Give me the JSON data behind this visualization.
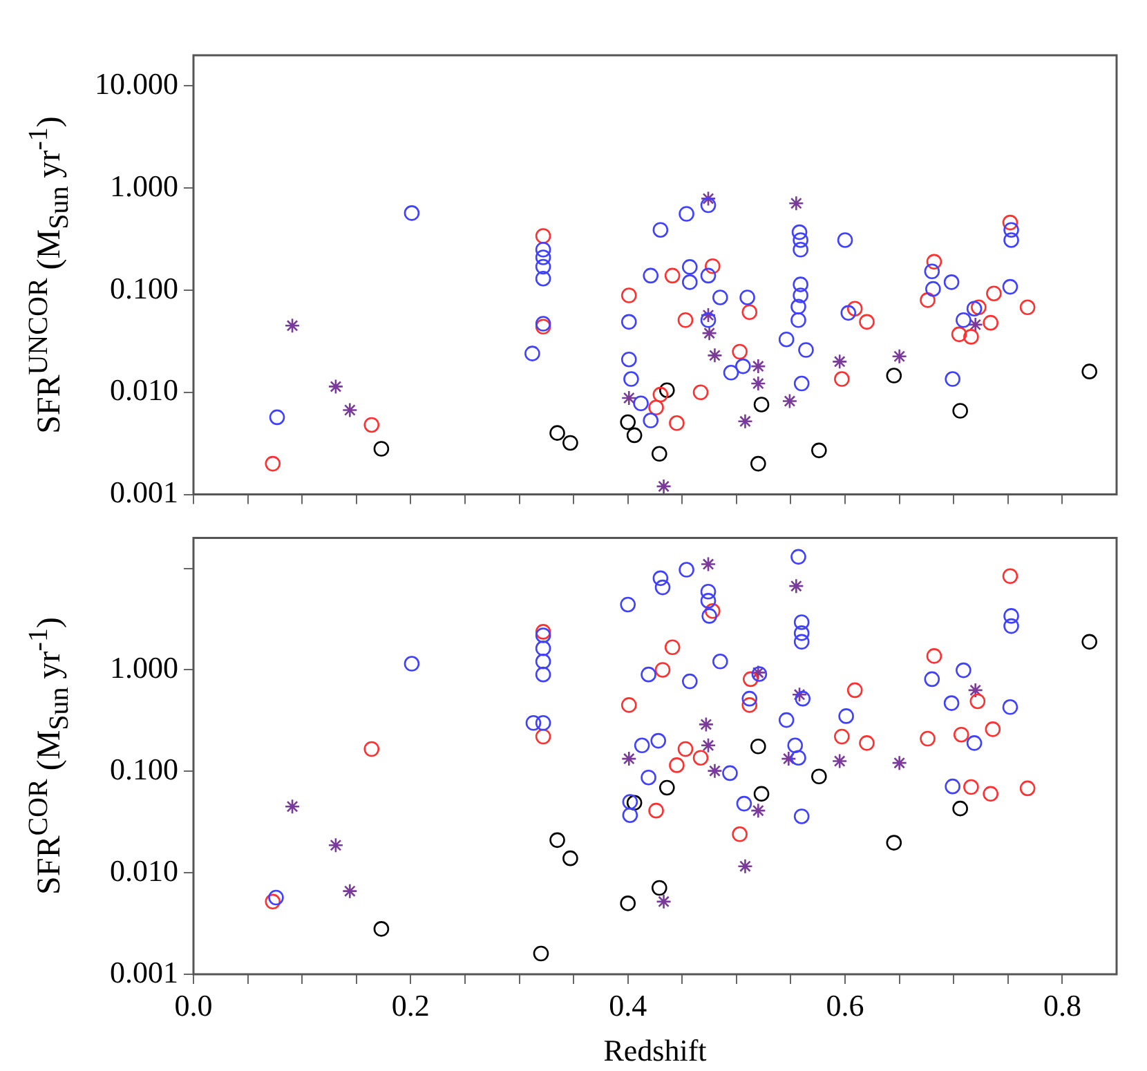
{
  "chart_data": [
    {
      "type": "scatter",
      "ylabel": "SFR$^{UNCOR}$ (M$_{Sun}$ yr$^{-1}$)",
      "log": "y",
      "grid": false,
      "tick_labels": "y",
      "xlim": [
        0,
        0.85
      ],
      "xticks": [
        {
          "value": 0,
          "label": null
        },
        {
          "value": 0.05,
          "label": null
        },
        {
          "value": 0.1,
          "label": null
        },
        {
          "value": 0.15,
          "label": null
        },
        {
          "value": 0.2,
          "label": null
        },
        {
          "value": 0.25,
          "label": null
        },
        {
          "value": 0.3,
          "label": null
        },
        {
          "value": 0.35,
          "label": null
        },
        {
          "value": 0.4,
          "label": null
        },
        {
          "value": 0.45,
          "label": null
        },
        {
          "value": 0.5,
          "label": null
        },
        {
          "value": 0.55,
          "label": null
        },
        {
          "value": 0.6,
          "label": null
        },
        {
          "value": 0.65,
          "label": null
        },
        {
          "value": 0.7,
          "label": null
        },
        {
          "value": 0.75,
          "label": null
        },
        {
          "value": 0.8,
          "label": null
        }
      ],
      "ylim": [
        0.001,
        20
      ],
      "yticks": [
        0.001,
        {
          "value": 0.01,
          "label": "0.010"
        },
        {
          "value": 0.1,
          "label": "0.100"
        },
        {
          "value": 1,
          "label": "1.000"
        },
        {
          "value": 10,
          "label": "10.000"
        }
      ],
      "series": [
        {
          "color": "#4040ff",
          "marker": "circle",
          "x": [
            0.201,
            0.077,
            0.322,
            0.322,
            0.322,
            0.322,
            0.322,
            0.312,
            0.401,
            0.401,
            0.403,
            0.412,
            0.421,
            0.421,
            0.43,
            0.454,
            0.474,
            0.457,
            0.457,
            0.474,
            0.485,
            0.51,
            0.474,
            0.495,
            0.506,
            0.558,
            0.559,
            0.559,
            0.559,
            0.559,
            0.557,
            0.557,
            0.546,
            0.564,
            0.56,
            0.6,
            0.603,
            0.68,
            0.681,
            0.698,
            0.709,
            0.719,
            0.699,
            0.752,
            0.753,
            0.753
          ],
          "values": [
            0.57,
            0.0057,
            0.25,
            0.21,
            0.17,
            0.13,
            0.047,
            0.024,
            0.049,
            0.021,
            0.0135,
            0.0078,
            0.0053,
            0.139,
            0.39,
            0.56,
            0.68,
            0.169,
            0.12,
            0.139,
            0.085,
            0.085,
            0.051,
            0.0156,
            0.018,
            0.37,
            0.31,
            0.25,
            0.114,
            0.089,
            0.069,
            0.051,
            0.033,
            0.026,
            0.0122,
            0.31,
            0.06,
            0.153,
            0.103,
            0.12,
            0.051,
            0.066,
            0.0135,
            0.108,
            0.39,
            0.31
          ]
        },
        {
          "color": "#ff3030",
          "marker": "circle",
          "x": [
            0.073,
            0.164,
            0.322,
            0.322,
            0.401,
            0.43,
            0.426,
            0.445,
            0.441,
            0.478,
            0.453,
            0.512,
            0.503,
            0.467,
            0.597,
            0.609,
            0.62,
            0.682,
            0.676,
            0.705,
            0.716,
            0.723,
            0.734,
            0.737,
            0.752,
            0.768
          ],
          "values": [
            0.002,
            0.0048,
            0.34,
            0.044,
            0.089,
            0.0095,
            0.0071,
            0.005,
            0.139,
            0.172,
            0.051,
            0.061,
            0.025,
            0.01,
            0.0135,
            0.066,
            0.049,
            0.19,
            0.08,
            0.037,
            0.035,
            0.068,
            0.048,
            0.093,
            0.46,
            0.068
          ]
        },
        {
          "color": "#7a3a9a",
          "marker": "cross",
          "x": [
            0.091,
            0.131,
            0.144,
            0.401,
            0.433,
            0.474,
            0.555,
            0.474,
            0.475,
            0.48,
            0.52,
            0.52,
            0.508,
            0.549,
            0.595,
            0.65,
            0.72
          ],
          "values": [
            0.045,
            0.0114,
            0.0067,
            0.0088,
            0.0012,
            0.79,
            0.71,
            0.057,
            0.038,
            0.023,
            0.018,
            0.0122,
            0.0052,
            0.0082,
            0.02,
            0.0225,
            0.046
          ]
        },
        {
          "color": "#000000",
          "marker": "circle",
          "x": [
            0.173,
            0.335,
            0.347,
            0.4,
            0.406,
            0.429,
            0.436,
            0.523,
            0.52,
            0.576,
            0.645,
            0.706,
            0.825
          ],
          "values": [
            0.0028,
            0.004,
            0.0032,
            0.0051,
            0.0038,
            0.0025,
            0.0105,
            0.0076,
            0.002,
            0.0027,
            0.0146,
            0.0066,
            0.016
          ]
        }
      ]
    },
    {
      "type": "scatter",
      "xlabel": "Redshift",
      "ylabel": "SFR$^{COR}$ (M$_{Sun}$ yr$^{-1}$)",
      "log": "y",
      "grid": false,
      "xlim": [
        0,
        0.85
      ],
      "xticks": [
        {
          "value": 0,
          "label": "0.0"
        },
        {
          "value": 0.05,
          "label": null
        },
        {
          "value": 0.1,
          "label": null
        },
        {
          "value": 0.15,
          "label": null
        },
        {
          "value": 0.2,
          "label": "0.2"
        },
        {
          "value": 0.25,
          "label": null
        },
        {
          "value": 0.3,
          "label": null
        },
        {
          "value": 0.35,
          "label": null
        },
        {
          "value": 0.4,
          "label": "0.4"
        },
        {
          "value": 0.45,
          "label": null
        },
        {
          "value": 0.5,
          "label": null
        },
        {
          "value": 0.55,
          "label": null
        },
        {
          "value": 0.6,
          "label": "0.6"
        },
        {
          "value": 0.65,
          "label": null
        },
        {
          "value": 0.7,
          "label": null
        },
        {
          "value": 0.75,
          "label": null
        },
        {
          "value": 0.8,
          "label": "0.8"
        }
      ],
      "ylim": [
        0.001,
        20
      ],
      "yticks": [
        0.001,
        {
          "value": 0.01,
          "label": "0.010"
        },
        {
          "value": 0.1,
          "label": "0.100"
        },
        {
          "value": 1,
          "label": "1.000"
        },
        {
          "value": 10,
          "label": null
        }
      ],
      "series": [
        {
          "color": "#4040ff",
          "marker": "circle",
          "x": [
            0.076,
            0.201,
            0.322,
            0.322,
            0.322,
            0.322,
            0.313,
            0.322,
            0.4,
            0.43,
            0.419,
            0.413,
            0.419,
            0.402,
            0.402,
            0.432,
            0.454,
            0.474,
            0.474,
            0.475,
            0.557,
            0.56,
            0.56,
            0.56,
            0.485,
            0.457,
            0.521,
            0.512,
            0.561,
            0.546,
            0.601,
            0.554,
            0.557,
            0.428,
            0.494,
            0.507,
            0.56,
            0.68,
            0.709,
            0.698,
            0.752,
            0.753,
            0.753,
            0.719,
            0.699
          ],
          "values": [
            0.0057,
            1.15,
            2.19,
            1.63,
            1.21,
            0.9,
            0.3,
            0.3,
            4.4,
            8,
            0.9,
            0.18,
            0.087,
            0.05,
            0.037,
            6.5,
            9.7,
            5.9,
            4.8,
            3.4,
            13,
            2.95,
            2.3,
            1.89,
            1.21,
            0.77,
            0.91,
            0.52,
            0.52,
            0.32,
            0.35,
            0.18,
            0.136,
            0.2,
            0.096,
            0.048,
            0.036,
            0.81,
            0.99,
            0.47,
            0.43,
            3.4,
            2.7,
            0.19,
            0.071
          ]
        },
        {
          "color": "#ff3030",
          "marker": "circle",
          "x": [
            0.073,
            0.164,
            0.322,
            0.322,
            0.401,
            0.426,
            0.752,
            0.478,
            0.441,
            0.432,
            0.513,
            0.512,
            0.609,
            0.682,
            0.722,
            0.597,
            0.62,
            0.676,
            0.707,
            0.736,
            0.453,
            0.467,
            0.445,
            0.503,
            0.716,
            0.734,
            0.768
          ],
          "values": [
            0.0052,
            0.166,
            2.37,
            0.22,
            0.45,
            0.041,
            8.4,
            3.8,
            1.67,
            1,
            0.81,
            0.45,
            0.63,
            1.37,
            0.49,
            0.22,
            0.19,
            0.21,
            0.23,
            0.26,
            0.166,
            0.136,
            0.115,
            0.024,
            0.07,
            0.06,
            0.068
          ]
        },
        {
          "color": "#7a3a9a",
          "marker": "cross",
          "x": [
            0.091,
            0.131,
            0.144,
            0.401,
            0.433,
            0.474,
            0.555,
            0.52,
            0.558,
            0.472,
            0.474,
            0.48,
            0.548,
            0.52,
            0.508,
            0.595,
            0.65,
            0.72
          ],
          "values": [
            0.045,
            0.0187,
            0.0066,
            0.133,
            0.0052,
            11,
            6.7,
            0.94,
            0.57,
            0.29,
            0.18,
            0.101,
            0.133,
            0.041,
            0.0116,
            0.126,
            0.121,
            0.63
          ]
        },
        {
          "color": "#000000",
          "marker": "circle",
          "x": [
            0.173,
            0.32,
            0.335,
            0.347,
            0.4,
            0.406,
            0.429,
            0.436,
            0.52,
            0.523,
            0.576,
            0.645,
            0.706,
            0.825
          ],
          "values": [
            0.0028,
            0.0016,
            0.021,
            0.0139,
            0.005,
            0.049,
            0.0071,
            0.069,
            0.176,
            0.06,
            0.089,
            0.0198,
            0.043,
            1.89
          ]
        }
      ]
    }
  ]
}
